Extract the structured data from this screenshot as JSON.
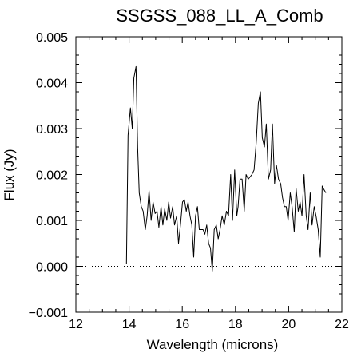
{
  "chart_data": {
    "type": "line",
    "title": "SSGSS_088_LL_A_Comb",
    "xlabel": "Wavelength (microns)",
    "ylabel": "Flux (Jy)",
    "xlim": [
      12,
      22
    ],
    "ylim": [
      -0.001,
      0.005
    ],
    "xticks": [
      12,
      14,
      16,
      18,
      20,
      22
    ],
    "xtick_labels": [
      "12",
      "14",
      "16",
      "18",
      "20",
      "22"
    ],
    "yticks": [
      -0.001,
      0.0,
      0.001,
      0.002,
      0.003,
      0.004,
      0.005
    ],
    "ytick_labels": [
      "−0.001",
      "0.000",
      "0.001",
      "0.002",
      "0.003",
      "0.004",
      "0.005"
    ],
    "reference_line": {
      "y": 0.0,
      "style": "dotted"
    },
    "grid": false,
    "series": [
      {
        "x": [
          13.9,
          13.96,
          14.05,
          14.12,
          14.18,
          14.26,
          14.32,
          14.38,
          14.46,
          14.53,
          14.61,
          14.68,
          14.75,
          14.83,
          14.9,
          14.98,
          15.05,
          15.12,
          15.2,
          15.27,
          15.34,
          15.42,
          15.49,
          15.56,
          15.64,
          15.71,
          15.79,
          15.86,
          15.93,
          16.01,
          16.08,
          16.15,
          16.22,
          16.29,
          16.36,
          16.43,
          16.5,
          16.57,
          16.64,
          16.71,
          16.78,
          16.85,
          16.92,
          16.99,
          17.06,
          17.13,
          17.2,
          17.28,
          17.35,
          17.42,
          17.5,
          17.58,
          17.66,
          17.74,
          17.82,
          17.89,
          17.97,
          18.05,
          18.1,
          18.17,
          18.25,
          18.33,
          18.4,
          18.48,
          18.55,
          18.62,
          18.7,
          18.78,
          18.86,
          18.94,
          19.01,
          19.09,
          19.16,
          19.24,
          19.32,
          19.39,
          19.47,
          19.54,
          19.62,
          19.7,
          19.77,
          19.84,
          19.91,
          19.98,
          20.06,
          20.13,
          20.21,
          20.28,
          20.36,
          20.43,
          20.5,
          20.58,
          20.66,
          20.73,
          20.81,
          20.88,
          20.96,
          21.03,
          21.11,
          21.19,
          21.26,
          21.3,
          21.4
        ],
        "y": [
          5e-05,
          0.00285,
          0.00345,
          0.003,
          0.0041,
          0.00435,
          0.0026,
          0.0016,
          0.0013,
          0.0012,
          0.0008,
          0.0011,
          0.00165,
          0.001,
          0.0014,
          0.00115,
          0.0012,
          0.00085,
          0.0013,
          0.0009,
          0.00125,
          0.001,
          0.0014,
          0.00105,
          0.0013,
          0.0009,
          0.0011,
          0.0005,
          0.0009,
          0.0014,
          0.00145,
          0.0012,
          0.0014,
          0.0011,
          0.0009,
          0.0002,
          0.0011,
          0.0013,
          0.0008,
          0.0008,
          0.0008,
          0.0007,
          0.0009,
          0.0005,
          0.0004,
          -0.0001,
          0.0008,
          0.0009,
          0.0006,
          0.0008,
          0.0011,
          0.0009,
          0.0012,
          0.0011,
          0.002,
          0.001,
          0.0021,
          0.0011,
          0.0013,
          0.0019,
          0.0019,
          0.0012,
          0.002,
          0.0019,
          0.00195,
          0.002,
          0.0021,
          0.0027,
          0.00355,
          0.0038,
          0.0028,
          0.0026,
          0.0031,
          0.0019,
          0.0021,
          0.0031,
          0.0018,
          0.0022,
          0.0019,
          0.0018,
          0.0015,
          0.0013,
          0.0013,
          0.001,
          0.0016,
          0.0013,
          0.00075,
          0.0017,
          0.0012,
          0.0014,
          0.0011,
          0.002,
          0.0011,
          0.0008,
          0.0016,
          0.0009,
          0.0013,
          0.0011,
          0.0008,
          0.0002,
          0.00175,
          0.0017,
          0.0016
        ]
      }
    ]
  }
}
